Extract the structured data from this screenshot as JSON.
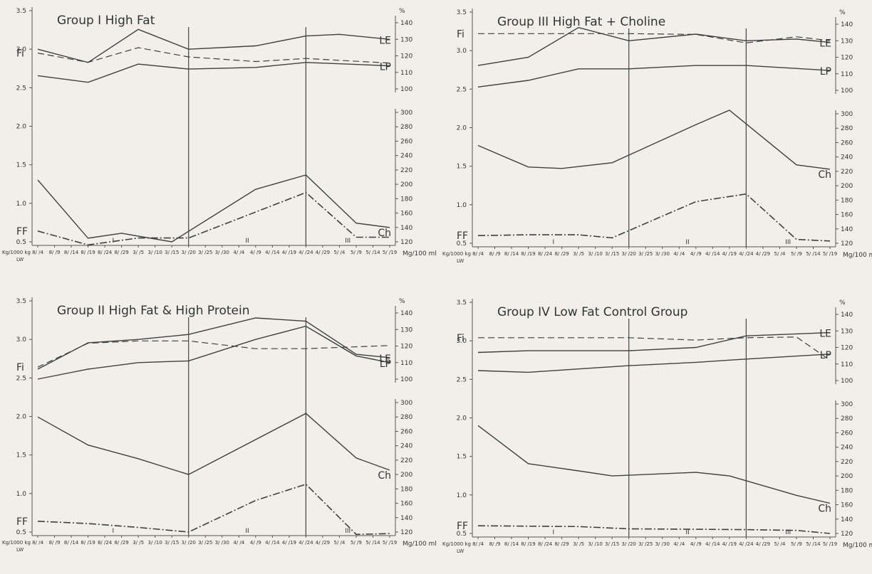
{
  "x_unit_label": "Kg/1000 kg",
  "x_unit_label_2": "LW",
  "right_axis_unit_upper": "%",
  "right_axis_unit_lower": "Mg/100 ml",
  "period_labels": [
    "I",
    "II",
    "III"
  ],
  "x_ticks": [
    "8/ /4",
    "8/ /9",
    "8/ /14",
    "8/ /19",
    "8/ /24",
    "8/ /29",
    "3/ /5",
    "3/ /10",
    "3/ /15",
    "3/ /20",
    "3/ /25",
    "3/ /30",
    "4/ /4",
    "4/ /9",
    "4/ /14",
    "4/ /19",
    "4/ /24",
    "4/ /29",
    "5/ /4",
    "5/ /9",
    "5/ /14",
    "5/ /19"
  ],
  "left_ticks": [
    "0.5",
    "1.0",
    "1.5",
    "2.0",
    "2.5",
    "3.0",
    "3.5"
  ],
  "right_upper_ticks": [
    "100",
    "110",
    "120",
    "130",
    "140"
  ],
  "right_lower_ticks": [
    "120",
    "140",
    "160",
    "180",
    "200",
    "220",
    "240",
    "260",
    "280",
    "300"
  ],
  "chart_data": [
    {
      "type": "line",
      "title": "Group I    High Fat",
      "x": [
        0,
        1,
        2,
        3,
        4,
        5,
        6,
        7,
        8,
        9,
        10,
        11,
        12,
        13,
        14,
        15,
        16,
        17,
        18,
        19,
        20,
        21
      ],
      "dividers_at": [
        9,
        16
      ],
      "series": [
        {
          "name": "Fi",
          "axis": "left",
          "style": "dash",
          "points": [
            [
              0,
              2.95
            ],
            [
              3,
              2.83
            ],
            [
              6,
              3.02
            ],
            [
              9,
              2.9
            ],
            [
              13,
              2.84
            ],
            [
              16,
              2.88
            ],
            [
              21,
              2.82
            ]
          ]
        },
        {
          "name": "LE",
          "axis": "pct",
          "style": "solid",
          "points": [
            [
              0,
              124
            ],
            [
              3,
              116
            ],
            [
              6,
              136
            ],
            [
              9,
              124
            ],
            [
              13,
              126
            ],
            [
              16,
              132
            ],
            [
              18,
              133
            ],
            [
              21,
              130
            ]
          ]
        },
        {
          "name": "LP",
          "axis": "pct",
          "style": "solid",
          "points": [
            [
              0,
              108
            ],
            [
              3,
              104
            ],
            [
              6,
              115
            ],
            [
              9,
              112
            ],
            [
              13,
              113
            ],
            [
              16,
              116
            ],
            [
              21,
              114
            ]
          ]
        },
        {
          "name": "Ch",
          "axis": "mg",
          "style": "solid",
          "points": [
            [
              0,
              206
            ],
            [
              3,
              125
            ],
            [
              5,
              132
            ],
            [
              8,
              120
            ],
            [
              13,
              193
            ],
            [
              16,
              213
            ],
            [
              19,
              146
            ],
            [
              21,
              140
            ]
          ]
        },
        {
          "name": "FF",
          "axis": "left",
          "style": "dashdot",
          "points": [
            [
              0,
              0.64
            ],
            [
              3,
              0.46
            ],
            [
              6,
              0.55
            ],
            [
              9,
              0.55
            ],
            [
              16,
              1.14
            ],
            [
              19,
              0.56
            ],
            [
              21,
              0.56
            ]
          ]
        }
      ]
    },
    {
      "type": "line",
      "title": "Group III    High Fat + Choline",
      "x": [
        0,
        1,
        2,
        3,
        4,
        5,
        6,
        7,
        8,
        9,
        10,
        11,
        12,
        13,
        14,
        15,
        16,
        17,
        18,
        19,
        20,
        21
      ],
      "dividers_at": [
        9,
        16
      ],
      "series": [
        {
          "name": "Fi",
          "axis": "left",
          "style": "dash",
          "points": [
            [
              0,
              3.22
            ],
            [
              9,
              3.22
            ],
            [
              13,
              3.21
            ],
            [
              16,
              3.1
            ],
            [
              19,
              3.18
            ],
            [
              21,
              3.13
            ]
          ]
        },
        {
          "name": "LE",
          "axis": "pct",
          "style": "solid",
          "points": [
            [
              0,
              115
            ],
            [
              3,
              120
            ],
            [
              6,
              138
            ],
            [
              9,
              130
            ],
            [
              13,
              134
            ],
            [
              16,
              130
            ],
            [
              19,
              131
            ],
            [
              21,
              129
            ]
          ]
        },
        {
          "name": "LP",
          "axis": "pct",
          "style": "solid",
          "points": [
            [
              0,
              102
            ],
            [
              3,
              106
            ],
            [
              6,
              113
            ],
            [
              9,
              113
            ],
            [
              13,
              115
            ],
            [
              16,
              115
            ],
            [
              21,
              112
            ]
          ]
        },
        {
          "name": "Ch",
          "axis": "mg",
          "style": "solid",
          "points": [
            [
              0,
              256
            ],
            [
              3,
              226
            ],
            [
              5,
              224
            ],
            [
              8,
              232
            ],
            [
              13,
              285
            ],
            [
              15,
              305
            ],
            [
              19,
              229
            ],
            [
              21,
              223
            ]
          ]
        },
        {
          "name": "FF",
          "axis": "left",
          "style": "dashdot",
          "points": [
            [
              0,
              0.6
            ],
            [
              3,
              0.61
            ],
            [
              6,
              0.61
            ],
            [
              8,
              0.57
            ],
            [
              13,
              1.04
            ],
            [
              16,
              1.14
            ],
            [
              19,
              0.55
            ],
            [
              21,
              0.53
            ]
          ]
        }
      ]
    },
    {
      "type": "line",
      "title": "Group II    High Fat & High Protein",
      "x": [
        0,
        1,
        2,
        3,
        4,
        5,
        6,
        7,
        8,
        9,
        10,
        11,
        12,
        13,
        14,
        15,
        16,
        17,
        18,
        19,
        20,
        21
      ],
      "dividers_at": [
        9,
        16
      ],
      "series": [
        {
          "name": "Fi",
          "axis": "left",
          "style": "dash",
          "points": [
            [
              0,
              2.64
            ],
            [
              3,
              2.95
            ],
            [
              6,
              2.98
            ],
            [
              9,
              2.98
            ],
            [
              13,
              2.88
            ],
            [
              16,
              2.88
            ],
            [
              21,
              2.92
            ]
          ]
        },
        {
          "name": "LE",
          "axis": "pct",
          "style": "solid",
          "points": [
            [
              0,
              106
            ],
            [
              3,
              122
            ],
            [
              6,
              124
            ],
            [
              9,
              127
            ],
            [
              13,
              137
            ],
            [
              16,
              135
            ],
            [
              19,
              115
            ],
            [
              21,
              113
            ]
          ]
        },
        {
          "name": "LP",
          "axis": "pct",
          "style": "solid",
          "points": [
            [
              0,
              100
            ],
            [
              3,
              106
            ],
            [
              6,
              110
            ],
            [
              9,
              111
            ],
            [
              13,
              124
            ],
            [
              16,
              132
            ],
            [
              19,
              114
            ],
            [
              21,
              110
            ]
          ]
        },
        {
          "name": "Ch",
          "axis": "mg",
          "style": "solid",
          "points": [
            [
              0,
              280
            ],
            [
              3,
              241
            ],
            [
              6,
              222
            ],
            [
              9,
              200
            ],
            [
              16,
              285
            ],
            [
              19,
              223
            ],
            [
              21,
              206
            ]
          ]
        },
        {
          "name": "FF",
          "axis": "left",
          "style": "dashdot",
          "points": [
            [
              0,
              0.64
            ],
            [
              3,
              0.61
            ],
            [
              6,
              0.56
            ],
            [
              9,
              0.5
            ],
            [
              13,
              0.91
            ],
            [
              16,
              1.12
            ],
            [
              19,
              0.47
            ],
            [
              21,
              0.48
            ]
          ]
        }
      ]
    },
    {
      "type": "line",
      "title": "Group IV    Low Fat Control Group",
      "x": [
        0,
        1,
        2,
        3,
        4,
        5,
        6,
        7,
        8,
        9,
        10,
        11,
        12,
        13,
        14,
        15,
        16,
        17,
        18,
        19,
        20,
        21
      ],
      "dividers_at": [
        9,
        16
      ],
      "series": [
        {
          "name": "Fi",
          "axis": "left",
          "style": "dash",
          "points": [
            [
              0,
              3.04
            ],
            [
              9,
              3.04
            ],
            [
              13,
              3.01
            ],
            [
              16,
              3.04
            ],
            [
              19,
              3.05
            ],
            [
              21,
              2.75
            ]
          ]
        },
        {
          "name": "LE",
          "axis": "pct",
          "style": "solid",
          "points": [
            [
              0,
              117
            ],
            [
              3,
              118
            ],
            [
              6,
              118
            ],
            [
              9,
              118
            ],
            [
              13,
              120
            ],
            [
              16,
              127
            ],
            [
              21,
              129
            ]
          ]
        },
        {
          "name": "LP",
          "axis": "pct",
          "style": "solid",
          "points": [
            [
              0,
              106
            ],
            [
              3,
              105
            ],
            [
              6,
              107
            ],
            [
              9,
              109
            ],
            [
              13,
              111
            ],
            [
              16,
              113
            ],
            [
              21,
              116
            ]
          ]
        },
        {
          "name": "Ch",
          "axis": "mg",
          "style": "solid",
          "points": [
            [
              0,
              270
            ],
            [
              3,
              217
            ],
            [
              6,
              207
            ],
            [
              8,
              200
            ],
            [
              13,
              205
            ],
            [
              15,
              200
            ],
            [
              19,
              173
            ],
            [
              21,
              162
            ]
          ]
        },
        {
          "name": "FF",
          "axis": "left",
          "style": "dashdot",
          "points": [
            [
              0,
              0.6
            ],
            [
              6,
              0.59
            ],
            [
              9,
              0.56
            ],
            [
              16,
              0.55
            ],
            [
              19,
              0.54
            ],
            [
              21,
              0.5
            ]
          ]
        }
      ]
    }
  ]
}
